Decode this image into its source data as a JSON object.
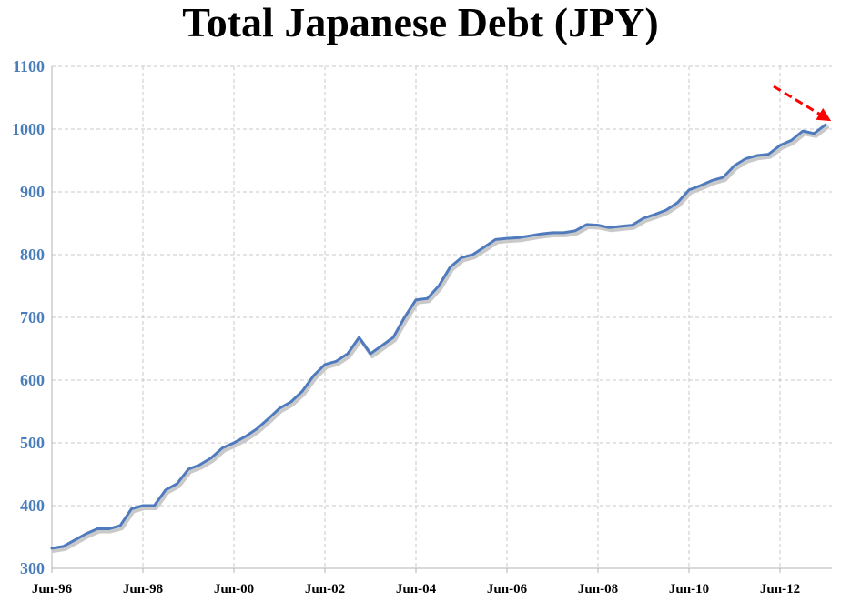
{
  "colors": {
    "series": "#4f7bbe",
    "shadow": "#c9c9c9",
    "grid": "#c8c8c8",
    "axis": "#b3b3b3",
    "ytick": "#4a7ebb",
    "arrow": "#ff0000"
  },
  "chart_data": {
    "type": "line",
    "title": "Total Japanese Debt (JPY)",
    "xlabel": "",
    "ylabel": "",
    "ylim": [
      300,
      1100
    ],
    "yticks": [
      300,
      400,
      500,
      600,
      700,
      800,
      900,
      1000,
      1100
    ],
    "xticks": [
      "Jun-96",
      "Jun-98",
      "Jun-00",
      "Jun-02",
      "Jun-04",
      "Jun-06",
      "Jun-08",
      "Jun-10",
      "Jun-12"
    ],
    "grid": true,
    "legend": "none",
    "annotation": "red dashed arrow pointing at the latest value",
    "series": [
      {
        "x": [
          "Jun-96",
          "Sep-96",
          "Dec-96",
          "Mar-97",
          "Jun-97",
          "Sep-97",
          "Dec-97",
          "Mar-98",
          "Jun-98",
          "Sep-98",
          "Dec-98",
          "Mar-99",
          "Jun-99",
          "Sep-99",
          "Dec-99",
          "Mar-00",
          "Jun-00",
          "Sep-00",
          "Dec-00",
          "Mar-01",
          "Jun-01",
          "Sep-01",
          "Dec-01",
          "Mar-02",
          "Jun-02",
          "Sep-02",
          "Dec-02",
          "Mar-03",
          "Jun-03",
          "Sep-03",
          "Dec-03",
          "Mar-04",
          "Jun-04",
          "Sep-04",
          "Dec-04",
          "Mar-05",
          "Jun-05",
          "Sep-05",
          "Dec-05",
          "Mar-06",
          "Jun-06",
          "Sep-06",
          "Dec-06",
          "Mar-07",
          "Jun-07",
          "Sep-07",
          "Dec-07",
          "Mar-08",
          "Jun-08",
          "Sep-08",
          "Dec-08",
          "Mar-09",
          "Jun-09",
          "Sep-09",
          "Dec-09",
          "Mar-10",
          "Jun-10",
          "Sep-10",
          "Dec-10",
          "Mar-11",
          "Jun-11",
          "Sep-11",
          "Dec-11",
          "Mar-12",
          "Jun-12",
          "Sep-12",
          "Dec-12",
          "Mar-13",
          "Jun-13"
        ],
        "values": [
          332,
          335,
          345,
          355,
          363,
          363,
          368,
          395,
          400,
          400,
          425,
          435,
          458,
          465,
          476,
          492,
          500,
          510,
          522,
          538,
          555,
          565,
          582,
          607,
          625,
          630,
          642,
          668,
          642,
          655,
          668,
          700,
          728,
          730,
          750,
          780,
          795,
          800,
          812,
          824,
          826,
          827,
          830,
          833,
          835,
          835,
          838,
          848,
          847,
          843,
          845,
          847,
          858,
          864,
          871,
          883,
          903,
          910,
          918,
          923,
          942,
          953,
          958,
          960,
          974,
          982,
          997,
          993,
          1007
        ]
      }
    ]
  }
}
